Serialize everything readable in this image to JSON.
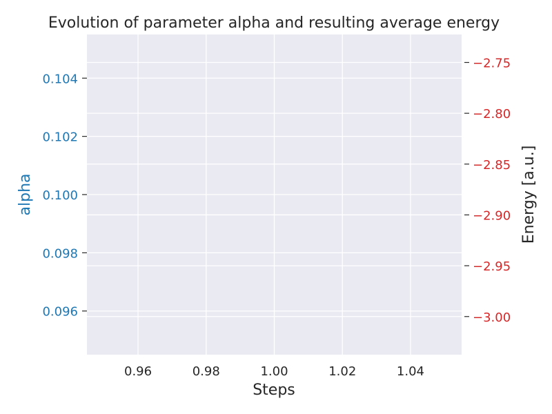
{
  "chart_data": {
    "type": "line",
    "title": "Evolution of parameter alpha and resulting average energy",
    "xlabel": "Steps",
    "y_left_label": "alpha",
    "y_right_label": "Energy [a.u.]",
    "xlim": [
      0.945,
      1.055
    ],
    "ylim_left": [
      0.0945,
      0.1055
    ],
    "ylim_right": [
      -3.0375,
      -2.7225
    ],
    "x_ticks": [
      0.96,
      0.98,
      1.0,
      1.02,
      1.04
    ],
    "x_tick_labels": [
      "0.96",
      "0.98",
      "1.00",
      "1.02",
      "1.04"
    ],
    "y_left_ticks": [
      0.096,
      0.098,
      0.1,
      0.102,
      0.104
    ],
    "y_left_tick_labels": [
      "0.096",
      "0.098",
      "0.100",
      "0.102",
      "0.104"
    ],
    "y_right_ticks": [
      -3.0,
      -2.95,
      -2.9,
      -2.85,
      -2.8,
      -2.75
    ],
    "y_right_tick_labels": [
      "−3.00",
      "−2.95",
      "−2.90",
      "−2.85",
      "−2.80",
      "−2.75"
    ],
    "grid": true,
    "series": [],
    "colors": {
      "background": "#eaeaf2",
      "grid": "#ffffff",
      "alpha_axis": "#1f77b4",
      "energy_axis": "#d62728",
      "text": "#262626"
    }
  }
}
